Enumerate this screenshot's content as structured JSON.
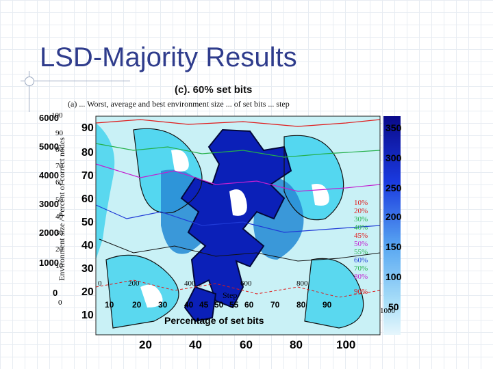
{
  "slide": {
    "title": "LSD-Majority Results"
  },
  "figure": {
    "overlay_titles": [
      "(c). 60% set bits",
      "(a) ... Worst, average and best environment size ... of set bits ... step"
    ],
    "x_axis_label": "Percentage of set bits",
    "step_label": "Step",
    "y_axis_label": "Environment size / Percent of correct nodes",
    "x_ticks_primary": [
      "20",
      "40",
      "60",
      "80",
      "100"
    ],
    "x_ticks_secondary": [
      "10",
      "20",
      "30",
      "40",
      "45",
      "50",
      "55",
      "60",
      "70",
      "80",
      "90"
    ],
    "x_ticks_step": [
      "0",
      "200",
      "400",
      "600",
      "800",
      "1000"
    ],
    "y_ticks_left_outer": [
      "100",
      "90",
      "80",
      "70",
      "60",
      "50",
      "40",
      "30",
      "20",
      "10",
      "0"
    ],
    "y_ticks_left_inner": [
      "6000",
      "5000",
      "4000",
      "3000",
      "2000",
      "1000",
      "0"
    ],
    "y_ticks_mid": [
      "90",
      "80",
      "70",
      "60",
      "50",
      "40",
      "30",
      "20",
      "10"
    ],
    "colorbar_ticks": [
      "350",
      "300",
      "250",
      "200",
      "150",
      "100",
      "50"
    ],
    "legend_items": [
      "10%",
      "20%",
      "30%",
      "40%",
      "45%",
      "50%",
      "55%",
      "60%",
      "70%",
      "80%",
      "90%"
    ]
  },
  "colors": {
    "title": "#2f3c8c",
    "contour_light": "#c9f1f6",
    "contour_cyan": "#3fd2ee",
    "contour_mid": "#2a8ed6",
    "contour_dark": "#0b20b8",
    "series_red": "#e01818",
    "series_green": "#24b04a",
    "series_magenta": "#c21fd0",
    "series_blue": "#1f3ad6"
  }
}
